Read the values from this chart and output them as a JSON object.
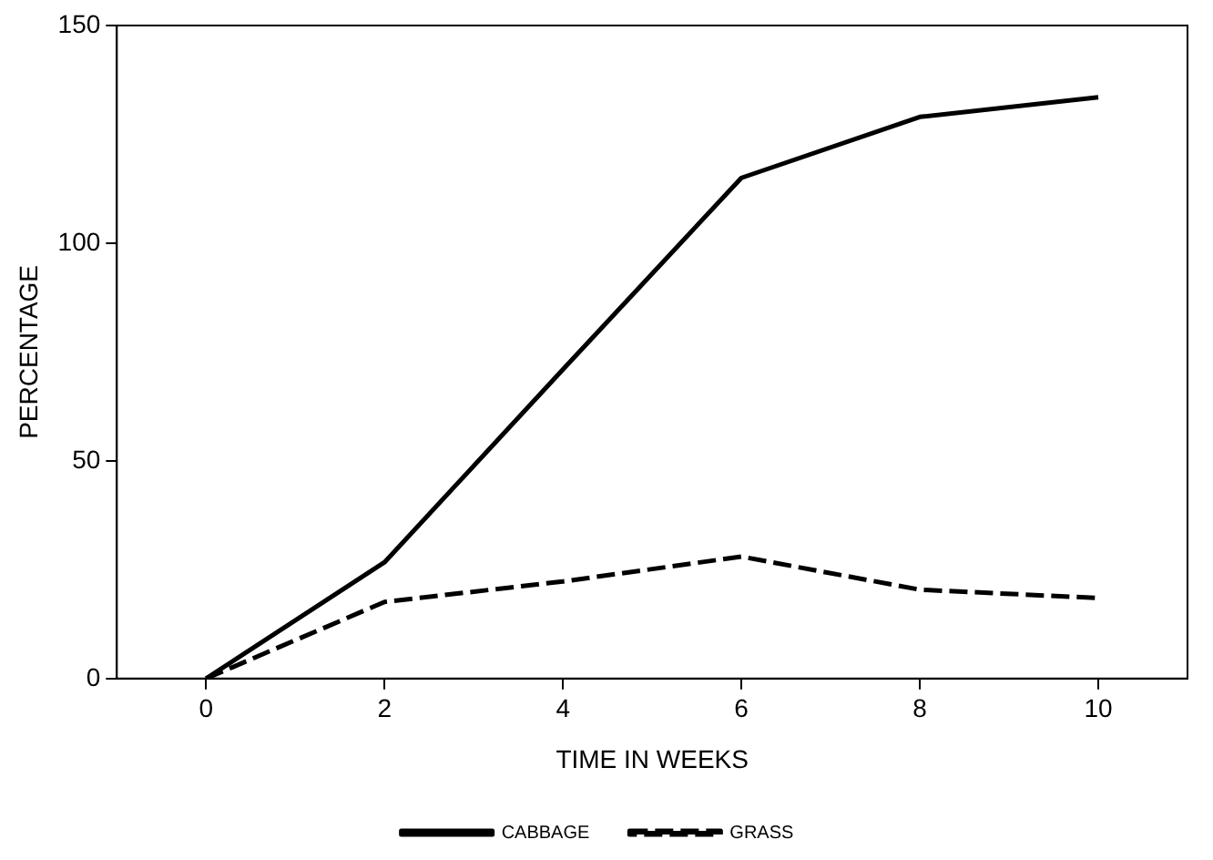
{
  "chart_data": {
    "type": "line",
    "xlabel": "TIME IN WEEKS",
    "ylabel": "PERCENTAGE",
    "x": [
      0,
      2,
      4,
      6,
      8,
      10
    ],
    "series": [
      {
        "name": "CABBAGE",
        "color": "#000000",
        "line_style": "solid",
        "values": [
          0,
          26.7,
          71,
          115,
          129,
          133.5
        ]
      },
      {
        "name": "GRASS",
        "color": "#000000",
        "line_style": "dashed",
        "values": [
          0,
          17.6,
          22.3,
          28,
          20.4,
          18.5
        ]
      }
    ],
    "xlim": [
      -1,
      11
    ],
    "xticks": [
      0,
      2,
      4,
      6,
      8,
      10
    ],
    "ylim": [
      0,
      150
    ],
    "yticks": [
      0,
      50,
      100,
      150
    ],
    "grid": false,
    "legend": "bottom",
    "marker": "none"
  }
}
